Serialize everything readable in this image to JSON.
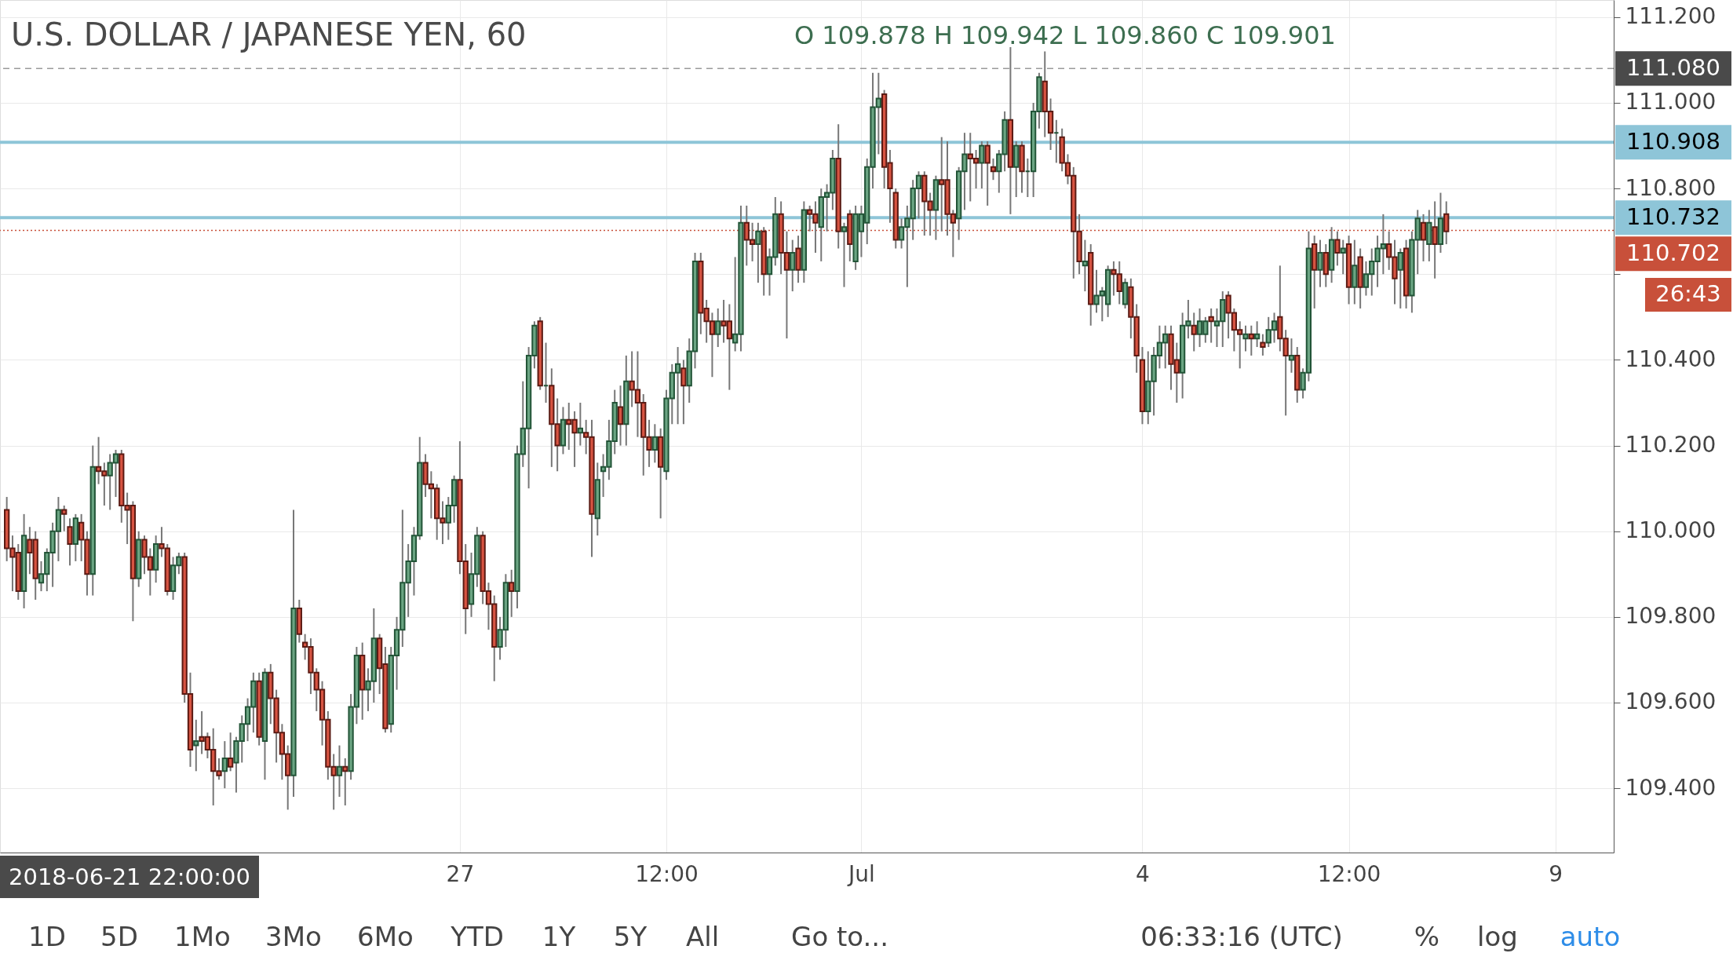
{
  "chart_data": {
    "type": "candlestick",
    "title": "U.S. DOLLAR / JAPANESE YEN, 60",
    "subtitle": "O 109.878 H 109.942 L 109.860 C 109.901",
    "categories": [
      null,
      null,
      null,
      null,
      null,
      null,
      null,
      null,
      null,
      null,
      null,
      null,
      null,
      null,
      null,
      null,
      null,
      null,
      null,
      null,
      null,
      null,
      null,
      null,
      null,
      null,
      null,
      null,
      null,
      null,
      null,
      null,
      null,
      null,
      null,
      null,
      null,
      null,
      null,
      null,
      null,
      null,
      null,
      null,
      null,
      null,
      null,
      null,
      null,
      null,
      null,
      null,
      null,
      null,
      null,
      null,
      null,
      null,
      null,
      null,
      null,
      null,
      null,
      null,
      null,
      null,
      null,
      null,
      null,
      null,
      null,
      null,
      null,
      null,
      null,
      null,
      null,
      null,
      null,
      "27",
      null,
      null,
      null,
      null,
      null,
      null,
      null,
      null,
      null,
      null,
      null,
      null,
      null,
      null,
      null,
      null,
      null,
      null,
      null,
      null,
      null,
      null,
      null,
      null,
      null,
      null,
      null,
      null,
      null,
      null,
      null,
      null,
      null,
      null,
      null,
      "12:00",
      null,
      null,
      null,
      null,
      null,
      null,
      null,
      null,
      null,
      null,
      null,
      null,
      null,
      null,
      null,
      null,
      null,
      null,
      null,
      null,
      null,
      null,
      null,
      null,
      null,
      null,
      null,
      null,
      null,
      null,
      null,
      null,
      null,
      "Jul",
      null,
      null,
      null,
      null,
      null,
      null,
      null,
      null,
      null,
      null,
      null,
      null,
      null,
      null,
      null,
      null,
      null,
      null,
      null,
      null,
      null,
      null,
      null,
      null,
      null,
      null,
      null,
      null,
      null,
      null,
      null,
      null,
      null,
      null,
      null,
      null,
      null,
      null,
      null,
      null,
      null,
      null,
      null,
      null,
      null,
      null,
      null,
      null,
      "4",
      null,
      null,
      null,
      null,
      null,
      null,
      null,
      null,
      null,
      null,
      null,
      null,
      null,
      null,
      null,
      null,
      null,
      null,
      null,
      null,
      null,
      null,
      null,
      null,
      null,
      null,
      null,
      null,
      null,
      null,
      null,
      null,
      null,
      null,
      null,
      "12:00",
      null,
      null,
      null,
      null,
      null,
      null,
      null,
      null,
      null,
      null,
      null,
      null,
      null,
      null,
      null,
      null,
      null,
      null,
      null,
      null,
      null,
      null,
      null,
      null,
      null,
      null,
      null,
      null,
      null,
      null,
      null,
      null,
      null,
      null,
      null,
      "9",
      null,
      null,
      null,
      null,
      null,
      null,
      null,
      null,
      null
    ],
    "ohlc": [
      [
        110.05,
        110.08,
        109.93,
        109.96
      ],
      [
        109.96,
        109.99,
        109.86,
        109.94
      ],
      [
        109.95,
        109.97,
        109.84,
        109.86
      ],
      [
        109.86,
        110.04,
        109.82,
        109.99
      ],
      [
        109.98,
        110.01,
        109.9,
        109.95
      ],
      [
        109.98,
        110.0,
        109.84,
        109.89
      ],
      [
        109.88,
        109.93,
        109.86,
        109.9
      ],
      [
        109.9,
        109.96,
        109.86,
        109.95
      ],
      [
        109.95,
        110.02,
        109.87,
        110.0
      ],
      [
        110.0,
        110.08,
        109.93,
        110.05
      ],
      [
        110.05,
        110.06,
        110.0,
        110.04
      ],
      [
        110.01,
        110.03,
        109.92,
        109.97
      ],
      [
        109.97,
        110.04,
        109.93,
        110.03
      ],
      [
        110.02,
        110.04,
        109.93,
        109.98
      ],
      [
        109.98,
        110.0,
        109.85,
        109.9
      ],
      [
        109.9,
        110.2,
        109.85,
        110.15
      ],
      [
        110.15,
        110.22,
        110.11,
        110.14
      ],
      [
        110.14,
        110.16,
        110.06,
        110.13
      ],
      [
        110.13,
        110.18,
        110.05,
        110.16
      ],
      [
        110.16,
        110.19,
        110.08,
        110.18
      ],
      [
        110.18,
        110.19,
        110.02,
        110.06
      ],
      [
        110.06,
        110.09,
        109.97,
        110.05
      ],
      [
        110.06,
        110.07,
        109.79,
        109.89
      ],
      [
        109.89,
        110.0,
        109.87,
        109.98
      ],
      [
        109.98,
        109.99,
        109.9,
        109.94
      ],
      [
        109.94,
        109.96,
        109.85,
        109.91
      ],
      [
        109.91,
        109.99,
        109.88,
        109.97
      ],
      [
        109.97,
        110.01,
        109.94,
        109.96
      ],
      [
        109.96,
        109.97,
        109.85,
        109.86
      ],
      [
        109.86,
        109.94,
        109.84,
        109.92
      ],
      [
        109.92,
        109.95,
        109.9,
        109.94
      ],
      [
        109.94,
        109.95,
        109.6,
        109.62
      ],
      [
        109.62,
        109.67,
        109.45,
        109.49
      ],
      [
        109.5,
        109.56,
        109.44,
        109.51
      ],
      [
        109.52,
        109.58,
        109.48,
        109.51
      ],
      [
        109.52,
        109.53,
        109.47,
        109.49
      ],
      [
        109.49,
        109.54,
        109.36,
        109.44
      ],
      [
        109.44,
        109.47,
        109.42,
        109.43
      ],
      [
        109.44,
        109.51,
        109.4,
        109.47
      ],
      [
        109.47,
        109.53,
        109.44,
        109.45
      ],
      [
        109.46,
        109.52,
        109.39,
        109.51
      ],
      [
        109.51,
        109.57,
        109.46,
        109.55
      ],
      [
        109.55,
        109.61,
        109.51,
        109.59
      ],
      [
        109.59,
        109.67,
        109.53,
        109.65
      ],
      [
        109.65,
        109.67,
        109.5,
        109.52
      ],
      [
        109.51,
        109.68,
        109.42,
        109.67
      ],
      [
        109.67,
        109.69,
        109.55,
        109.61
      ],
      [
        109.61,
        109.63,
        109.46,
        109.53
      ],
      [
        109.53,
        109.55,
        109.42,
        109.48
      ],
      [
        109.48,
        109.5,
        109.35,
        109.43
      ],
      [
        109.43,
        110.05,
        109.38,
        109.82
      ],
      [
        109.82,
        109.84,
        109.74,
        109.76
      ],
      [
        109.74,
        109.76,
        109.7,
        109.73
      ],
      [
        109.73,
        109.75,
        109.62,
        109.67
      ],
      [
        109.67,
        109.68,
        109.58,
        109.63
      ],
      [
        109.63,
        109.65,
        109.5,
        109.56
      ],
      [
        109.56,
        109.58,
        109.42,
        109.45
      ],
      [
        109.45,
        109.48,
        109.35,
        109.43
      ],
      [
        109.43,
        109.5,
        109.38,
        109.45
      ],
      [
        109.45,
        109.47,
        109.36,
        109.44
      ],
      [
        109.44,
        109.62,
        109.42,
        109.59
      ],
      [
        109.59,
        109.73,
        109.55,
        109.71
      ],
      [
        109.71,
        109.74,
        109.56,
        109.63
      ],
      [
        109.63,
        109.68,
        109.58,
        109.65
      ],
      [
        109.65,
        109.82,
        109.6,
        109.75
      ],
      [
        109.75,
        109.76,
        109.62,
        109.68
      ],
      [
        109.69,
        109.73,
        109.53,
        109.54
      ],
      [
        109.55,
        109.73,
        109.53,
        109.71
      ],
      [
        109.71,
        109.8,
        109.63,
        109.77
      ],
      [
        109.77,
        110.05,
        109.73,
        109.88
      ],
      [
        109.88,
        109.97,
        109.8,
        109.93
      ],
      [
        109.93,
        110.01,
        109.85,
        109.99
      ],
      [
        109.99,
        110.22,
        109.98,
        110.16
      ],
      [
        110.16,
        110.18,
        110.08,
        110.11
      ],
      [
        110.11,
        110.14,
        110.03,
        110.1
      ],
      [
        110.1,
        110.11,
        109.98,
        110.03
      ],
      [
        110.03,
        110.07,
        109.97,
        110.02
      ],
      [
        110.02,
        110.08,
        109.98,
        110.06
      ],
      [
        110.06,
        110.13,
        110.02,
        110.12
      ],
      [
        110.12,
        110.21,
        109.9,
        109.93
      ],
      [
        109.93,
        109.97,
        109.76,
        109.82
      ],
      [
        109.83,
        109.95,
        109.8,
        109.9
      ],
      [
        109.9,
        110.01,
        109.87,
        109.99
      ],
      [
        109.99,
        110.0,
        109.83,
        109.86
      ],
      [
        109.86,
        109.88,
        109.77,
        109.83
      ],
      [
        109.83,
        109.85,
        109.65,
        109.73
      ],
      [
        109.73,
        109.8,
        109.7,
        109.77
      ],
      [
        109.77,
        109.9,
        109.73,
        109.88
      ],
      [
        109.88,
        109.91,
        109.8,
        109.86
      ],
      [
        109.86,
        110.2,
        109.82,
        110.18
      ],
      [
        110.18,
        110.35,
        110.15,
        110.24
      ],
      [
        110.24,
        110.43,
        110.1,
        110.41
      ],
      [
        110.41,
        110.49,
        110.38,
        110.48
      ],
      [
        110.49,
        110.5,
        110.33,
        110.34
      ],
      [
        110.34,
        110.44,
        110.3,
        110.34
      ],
      [
        110.34,
        110.38,
        110.15,
        110.25
      ],
      [
        110.25,
        110.31,
        110.14,
        110.2
      ],
      [
        110.2,
        110.29,
        110.18,
        110.26
      ],
      [
        110.26,
        110.3,
        110.19,
        110.25
      ],
      [
        110.26,
        110.28,
        110.15,
        110.23
      ],
      [
        110.23,
        110.3,
        110.2,
        110.24
      ],
      [
        110.23,
        110.26,
        110.18,
        110.22
      ],
      [
        110.22,
        110.26,
        109.94,
        110.04
      ],
      [
        110.03,
        110.16,
        109.99,
        110.12
      ],
      [
        110.14,
        110.18,
        110.08,
        110.15
      ],
      [
        110.15,
        110.26,
        110.12,
        110.21
      ],
      [
        110.21,
        110.33,
        110.18,
        110.3
      ],
      [
        110.29,
        110.34,
        110.2,
        110.25
      ],
      [
        110.25,
        110.41,
        110.2,
        110.35
      ],
      [
        110.35,
        110.42,
        110.29,
        110.33
      ],
      [
        110.33,
        110.42,
        110.22,
        110.3
      ],
      [
        110.3,
        110.32,
        110.13,
        110.22
      ],
      [
        110.22,
        110.26,
        110.15,
        110.19
      ],
      [
        110.19,
        110.25,
        110.16,
        110.22
      ],
      [
        110.22,
        110.24,
        110.03,
        110.15
      ],
      [
        110.14,
        110.33,
        110.12,
        110.31
      ],
      [
        110.31,
        110.39,
        110.25,
        110.37
      ],
      [
        110.37,
        110.43,
        110.25,
        110.39
      ],
      [
        110.38,
        110.4,
        110.25,
        110.34
      ],
      [
        110.34,
        110.45,
        110.3,
        110.42
      ],
      [
        110.42,
        110.65,
        110.38,
        110.63
      ],
      [
        110.63,
        110.65,
        110.46,
        110.51
      ],
      [
        110.52,
        110.54,
        110.44,
        110.49
      ],
      [
        110.49,
        110.51,
        110.36,
        110.46
      ],
      [
        110.46,
        110.52,
        110.43,
        110.49
      ],
      [
        110.49,
        110.54,
        110.44,
        110.48
      ],
      [
        110.49,
        110.53,
        110.33,
        110.45
      ],
      [
        110.44,
        110.64,
        110.42,
        110.46
      ],
      [
        110.46,
        110.76,
        110.42,
        110.72
      ],
      [
        110.72,
        110.76,
        110.62,
        110.68
      ],
      [
        110.68,
        110.72,
        110.63,
        110.67
      ],
      [
        110.67,
        110.72,
        110.58,
        110.7
      ],
      [
        110.7,
        110.71,
        110.55,
        110.6
      ],
      [
        110.6,
        110.66,
        110.55,
        110.64
      ],
      [
        110.64,
        110.78,
        110.62,
        110.74
      ],
      [
        110.74,
        110.77,
        110.6,
        110.65
      ],
      [
        110.65,
        110.7,
        110.45,
        110.61
      ],
      [
        110.61,
        110.68,
        110.56,
        110.65
      ],
      [
        110.66,
        110.69,
        110.58,
        110.61
      ],
      [
        110.61,
        110.77,
        110.58,
        110.75
      ],
      [
        110.75,
        110.76,
        110.7,
        110.74
      ],
      [
        110.74,
        110.77,
        110.65,
        110.72
      ],
      [
        110.71,
        110.8,
        110.63,
        110.78
      ],
      [
        110.78,
        110.81,
        110.7,
        110.79
      ],
      [
        110.79,
        110.89,
        110.75,
        110.87
      ],
      [
        110.87,
        110.95,
        110.66,
        110.7
      ],
      [
        110.7,
        110.72,
        110.57,
        110.71
      ],
      [
        110.74,
        110.75,
        110.63,
        110.67
      ],
      [
        110.63,
        110.76,
        110.61,
        110.74
      ],
      [
        110.7,
        110.76,
        110.64,
        110.74
      ],
      [
        110.72,
        110.87,
        110.67,
        110.85
      ],
      [
        110.85,
        111.07,
        110.8,
        110.99
      ],
      [
        110.99,
        111.07,
        110.88,
        111.01
      ],
      [
        111.02,
        111.03,
        110.8,
        110.85
      ],
      [
        110.86,
        110.89,
        110.72,
        110.8
      ],
      [
        110.79,
        110.8,
        110.66,
        110.68
      ],
      [
        110.68,
        110.73,
        110.66,
        110.71
      ],
      [
        110.71,
        110.76,
        110.57,
        110.73
      ],
      [
        110.73,
        110.82,
        110.68,
        110.8
      ],
      [
        110.8,
        110.84,
        110.73,
        110.83
      ],
      [
        110.83,
        110.84,
        110.69,
        110.77
      ],
      [
        110.77,
        110.79,
        110.69,
        110.75
      ],
      [
        110.75,
        110.83,
        110.68,
        110.82
      ],
      [
        110.82,
        110.92,
        110.7,
        110.81
      ],
      [
        110.82,
        110.91,
        110.69,
        110.74
      ],
      [
        110.74,
        110.75,
        110.64,
        110.72
      ],
      [
        110.73,
        110.85,
        110.68,
        110.84
      ],
      [
        110.84,
        110.93,
        110.75,
        110.88
      ],
      [
        110.88,
        110.93,
        110.77,
        110.87
      ],
      [
        110.87,
        110.89,
        110.8,
        110.86
      ],
      [
        110.86,
        110.91,
        110.8,
        110.9
      ],
      [
        110.9,
        110.91,
        110.76,
        110.86
      ],
      [
        110.85,
        110.87,
        110.82,
        110.84
      ],
      [
        110.84,
        110.89,
        110.79,
        110.88
      ],
      [
        110.88,
        110.98,
        110.84,
        110.96
      ],
      [
        110.96,
        111.13,
        110.74,
        110.85
      ],
      [
        110.85,
        110.91,
        110.78,
        110.9
      ],
      [
        110.9,
        110.91,
        110.79,
        110.84
      ],
      [
        110.84,
        110.87,
        110.78,
        110.84
      ],
      [
        110.84,
        111.0,
        110.78,
        110.98
      ],
      [
        110.98,
        111.07,
        110.94,
        111.06
      ],
      [
        111.05,
        111.12,
        110.92,
        110.98
      ],
      [
        110.98,
        111.01,
        110.89,
        110.93
      ],
      [
        110.93,
        110.96,
        110.86,
        110.93
      ],
      [
        110.92,
        110.94,
        110.84,
        110.86
      ],
      [
        110.86,
        110.88,
        110.81,
        110.83
      ],
      [
        110.83,
        110.85,
        110.59,
        110.7
      ],
      [
        110.7,
        110.74,
        110.6,
        110.63
      ],
      [
        110.62,
        110.68,
        110.56,
        110.63
      ],
      [
        110.65,
        110.67,
        110.48,
        110.53
      ],
      [
        110.53,
        110.61,
        110.51,
        110.55
      ],
      [
        110.55,
        110.57,
        110.49,
        110.56
      ],
      [
        110.53,
        110.62,
        110.5,
        110.61
      ],
      [
        110.61,
        110.63,
        110.55,
        110.6
      ],
      [
        110.6,
        110.63,
        110.53,
        110.56
      ],
      [
        110.53,
        110.59,
        110.52,
        110.58
      ],
      [
        110.57,
        110.59,
        110.45,
        110.5
      ],
      [
        110.5,
        110.53,
        110.37,
        110.41
      ],
      [
        110.4,
        110.43,
        110.25,
        110.28
      ],
      [
        110.28,
        110.42,
        110.25,
        110.35
      ],
      [
        110.35,
        110.43,
        110.27,
        110.41
      ],
      [
        110.41,
        110.48,
        110.38,
        110.44
      ],
      [
        110.44,
        110.48,
        110.38,
        110.46
      ],
      [
        110.46,
        110.48,
        110.33,
        110.39
      ],
      [
        110.4,
        110.44,
        110.3,
        110.37
      ],
      [
        110.37,
        110.51,
        110.31,
        110.48
      ],
      [
        110.48,
        110.54,
        110.45,
        110.49
      ],
      [
        110.48,
        110.51,
        110.42,
        110.46
      ],
      [
        110.46,
        110.52,
        110.43,
        110.49
      ],
      [
        110.46,
        110.5,
        110.44,
        110.49
      ],
      [
        110.5,
        110.52,
        110.44,
        110.49
      ],
      [
        110.48,
        110.52,
        110.43,
        110.49
      ],
      [
        110.49,
        110.56,
        110.43,
        110.54
      ],
      [
        110.55,
        110.56,
        110.45,
        110.51
      ],
      [
        110.51,
        110.52,
        110.42,
        110.47
      ],
      [
        110.47,
        110.49,
        110.38,
        110.46
      ],
      [
        110.45,
        110.48,
        110.42,
        110.46
      ],
      [
        110.46,
        110.48,
        110.41,
        110.45
      ],
      [
        110.45,
        110.49,
        110.43,
        110.46
      ],
      [
        110.44,
        110.46,
        110.41,
        110.43
      ],
      [
        110.44,
        110.5,
        110.43,
        110.47
      ],
      [
        110.47,
        110.51,
        110.44,
        110.49
      ],
      [
        110.5,
        110.62,
        110.42,
        110.45
      ],
      [
        110.45,
        110.47,
        110.27,
        110.41
      ],
      [
        110.4,
        110.45,
        110.37,
        110.41
      ],
      [
        110.41,
        110.43,
        110.3,
        110.33
      ],
      [
        110.33,
        110.38,
        110.31,
        110.37
      ],
      [
        110.37,
        110.7,
        110.35,
        110.66
      ],
      [
        110.67,
        110.69,
        110.52,
        110.61
      ],
      [
        110.61,
        110.68,
        110.57,
        110.65
      ],
      [
        110.65,
        110.67,
        110.57,
        110.6
      ],
      [
        110.61,
        110.71,
        110.58,
        110.68
      ],
      [
        110.68,
        110.7,
        110.62,
        110.65
      ],
      [
        110.65,
        110.68,
        110.6,
        110.66
      ],
      [
        110.67,
        110.69,
        110.53,
        110.57
      ],
      [
        110.57,
        110.68,
        110.53,
        110.62
      ],
      [
        110.64,
        110.66,
        110.52,
        110.57
      ],
      [
        110.57,
        110.63,
        110.55,
        110.6
      ],
      [
        110.6,
        110.66,
        110.55,
        110.63
      ],
      [
        110.63,
        110.69,
        110.57,
        110.66
      ],
      [
        110.66,
        110.74,
        110.6,
        110.67
      ],
      [
        110.67,
        110.7,
        110.61,
        110.64
      ],
      [
        110.64,
        110.68,
        110.53,
        110.59
      ],
      [
        110.61,
        110.66,
        110.52,
        110.65
      ],
      [
        110.66,
        110.68,
        110.52,
        110.55
      ],
      [
        110.55,
        110.7,
        110.51,
        110.68
      ],
      [
        110.68,
        110.75,
        110.6,
        110.73
      ],
      [
        110.72,
        110.74,
        110.63,
        110.68
      ],
      [
        110.67,
        110.75,
        110.63,
        110.72
      ],
      [
        110.71,
        110.77,
        110.59,
        110.67
      ],
      [
        110.67,
        110.79,
        110.65,
        110.73
      ],
      [
        110.74,
        110.77,
        110.67,
        110.7
      ],
      null,
      null,
      null,
      null,
      null,
      null,
      null,
      null,
      null,
      null,
      null,
      null,
      null,
      null,
      null,
      null,
      null,
      null,
      null,
      null,
      null,
      null,
      null,
      null,
      null,
      null,
      null,
      null
    ],
    "ylim": [
      109.25,
      111.24
    ],
    "yticks": [
      {
        "value": 109.4,
        "label": "109.400"
      },
      {
        "value": 109.6,
        "label": "109.600"
      },
      {
        "value": 109.8,
        "label": "109.800"
      },
      {
        "value": 110.0,
        "label": "110.000"
      },
      {
        "value": 110.2,
        "label": "110.200"
      },
      {
        "value": 110.4,
        "label": "110.400"
      },
      {
        "value": 110.6,
        "label": null
      },
      {
        "value": 110.8,
        "label": "110.800"
      },
      {
        "value": 111.0,
        "label": "111.000"
      },
      {
        "value": 111.2,
        "label": "111.200"
      }
    ],
    "ref_lines": [
      {
        "axis": "y",
        "value": 111.08,
        "label": "111.080",
        "color": "#9a9a9a",
        "line_style": "dashed"
      },
      {
        "axis": "y",
        "value": 110.908,
        "label": "110.908",
        "color": "#8ec5d8",
        "line_style": "solid"
      },
      {
        "axis": "y",
        "value": 110.732,
        "label": "110.732",
        "color": "#8ec5d8",
        "line_style": "solid"
      },
      {
        "axis": "y",
        "value": 110.702,
        "label": "110.702",
        "color": "#c8503a",
        "line_style": "dotted"
      }
    ],
    "annotations": [
      "2018-06-21 22:00:00",
      "26:43",
      "1D",
      "5D",
      "1Mo",
      "3Mo",
      "6Mo",
      "YTD",
      "1Y",
      "5Y",
      "All",
      "Go to...",
      "06:33:16 (UTC)",
      "%",
      "log",
      "auto"
    ],
    "grid": true
  }
}
